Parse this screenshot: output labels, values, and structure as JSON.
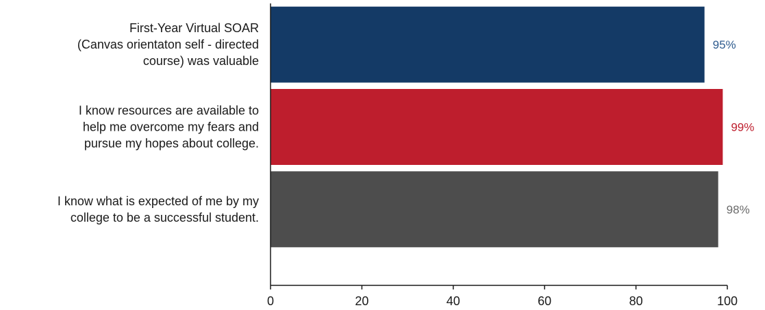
{
  "chart_data": {
    "type": "bar",
    "orientation": "horizontal",
    "categories": [
      [
        "First-Year Virtual SOAR",
        "(Canvas orientaton self - directed",
        "course) was valuable"
      ],
      [
        "I know resources are available to",
        "help me overcome my fears and",
        "pursue my hopes about college."
      ],
      [
        "I know what is expected of me by my",
        "college to be a successful student."
      ]
    ],
    "values": [
      95,
      99,
      98
    ],
    "data_labels": [
      "95%",
      "99%",
      "98%"
    ],
    "colors": [
      "#143a66",
      "#be1e2d",
      "#4d4d4d"
    ],
    "label_colors": [
      "#2f5c8f",
      "#be1e2d",
      "#6b6b6b"
    ],
    "xlim": [
      0,
      100
    ],
    "xticks": [
      0,
      20,
      40,
      60,
      80,
      100
    ],
    "tick_labels": [
      "0",
      "20",
      "40",
      "60",
      "80",
      "100"
    ],
    "grid": false,
    "legend": "none"
  }
}
